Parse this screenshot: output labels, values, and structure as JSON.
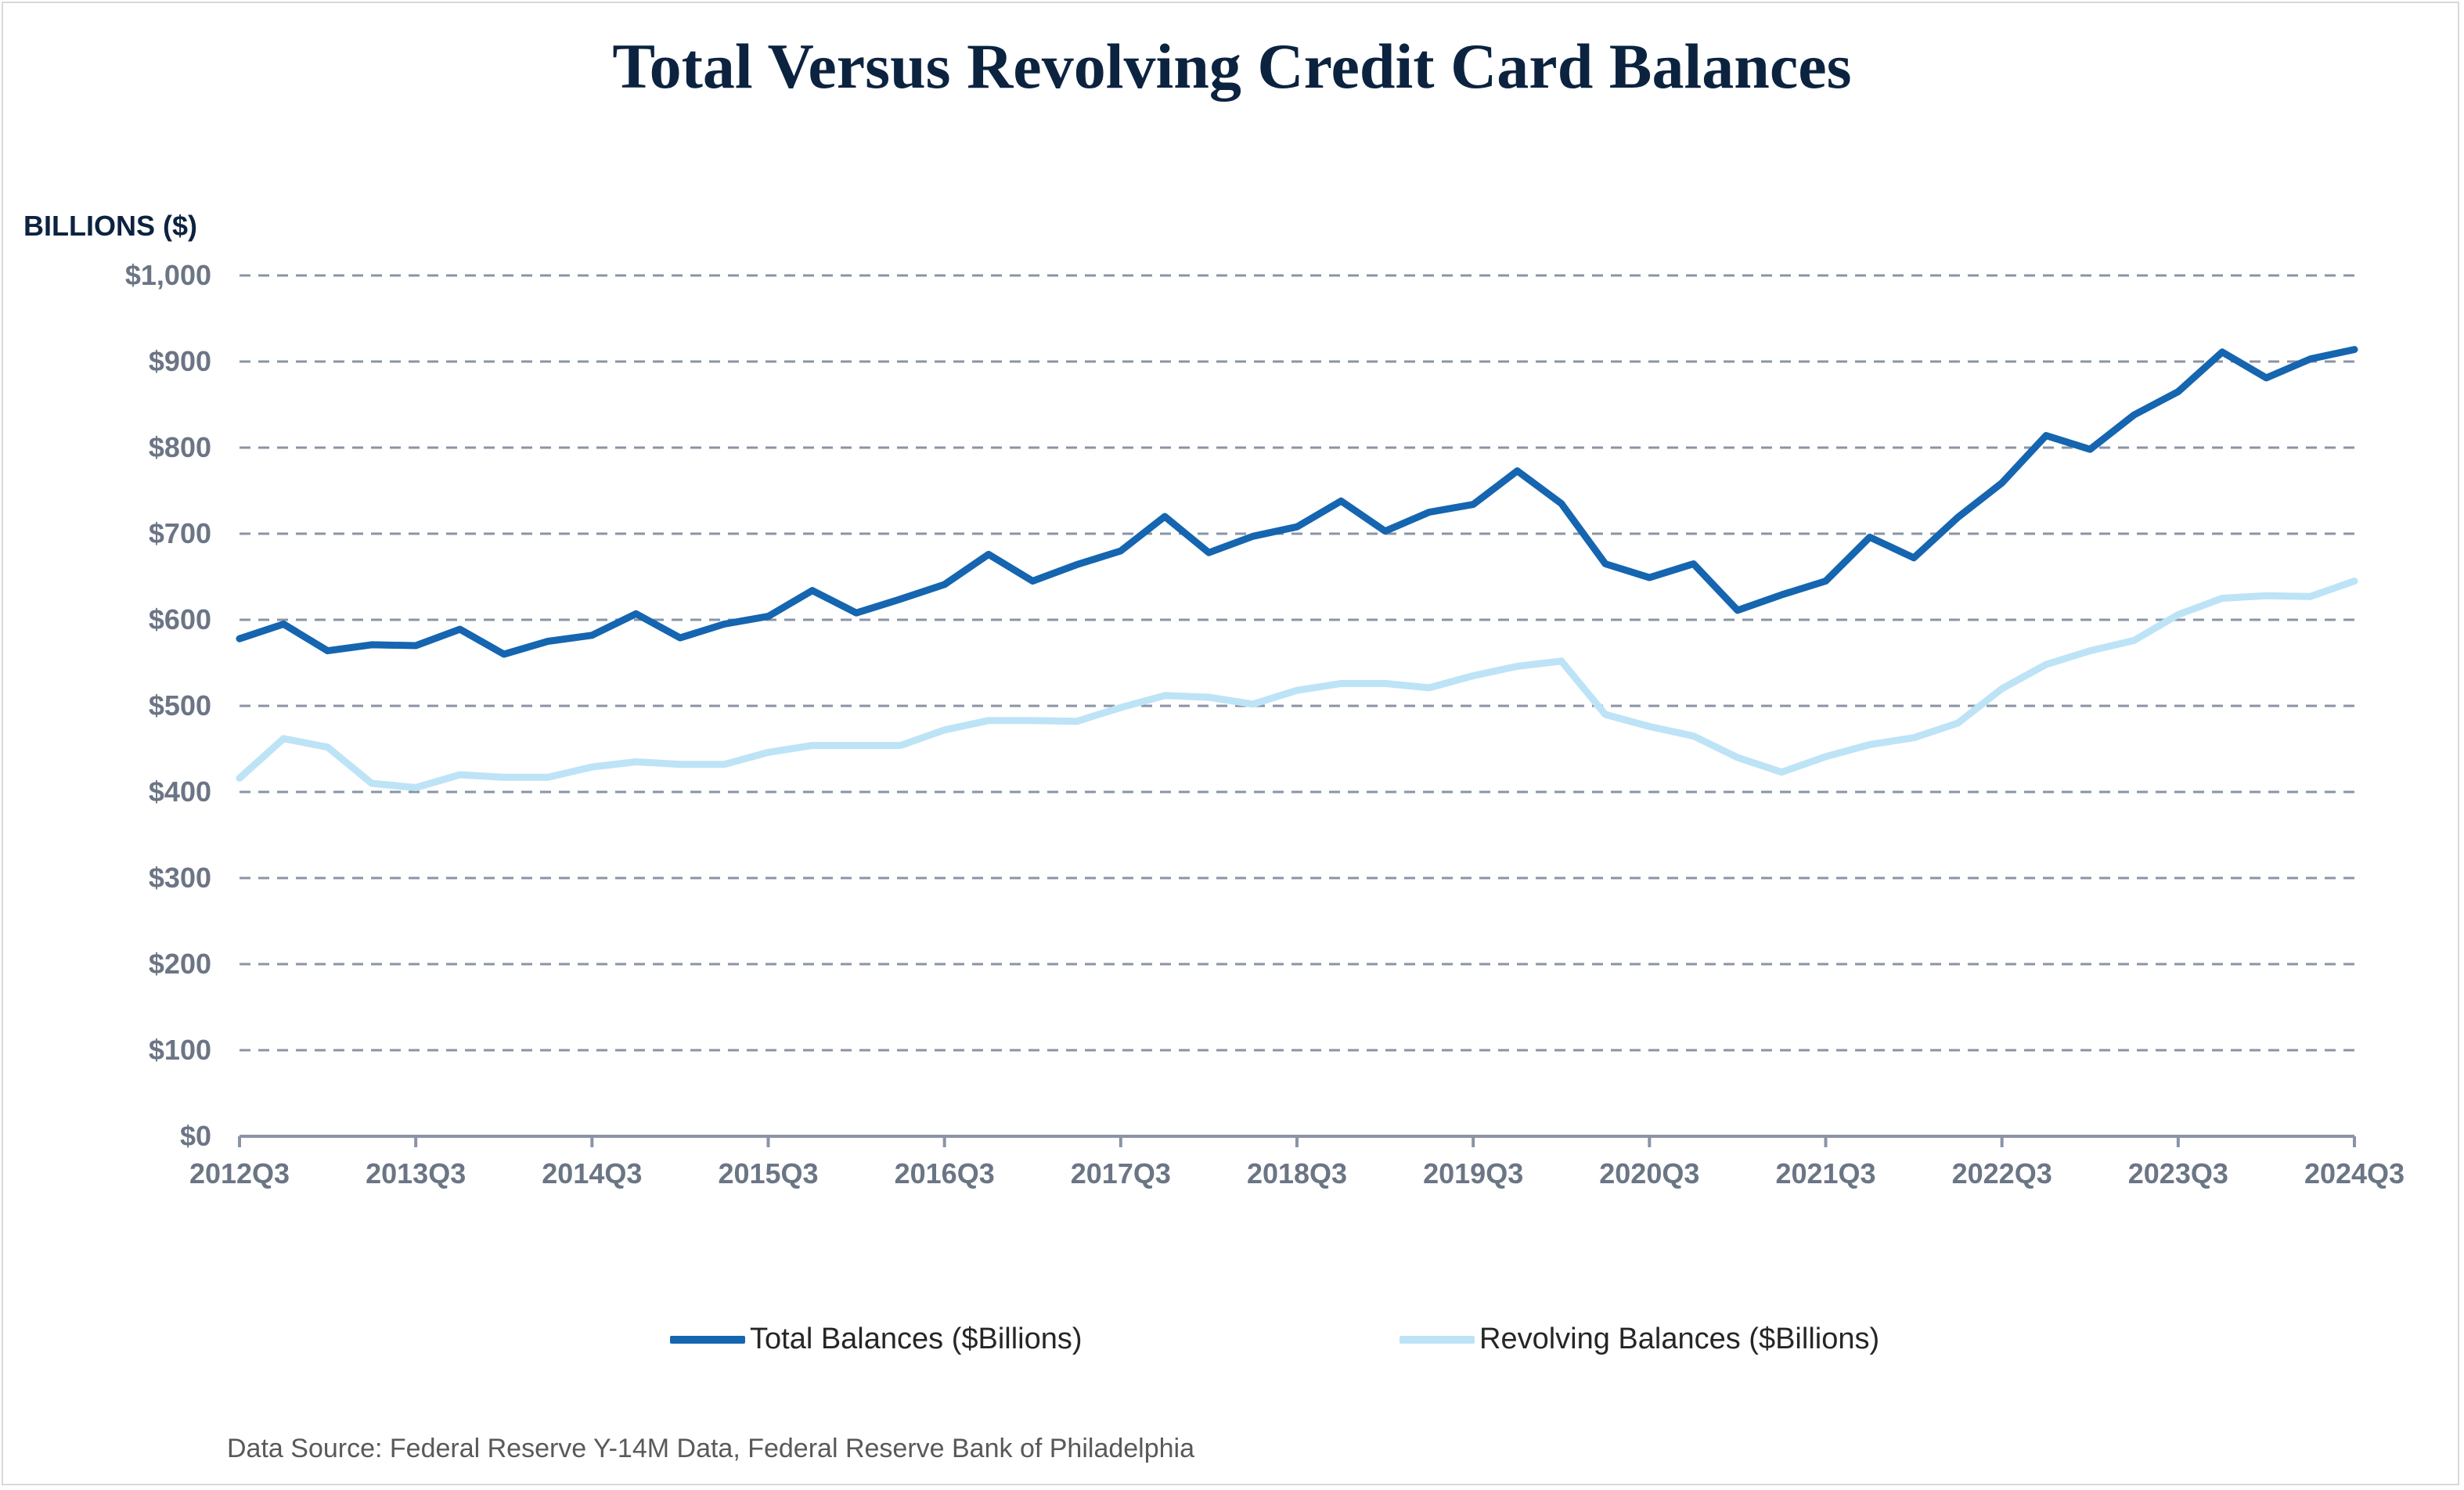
{
  "chart_data": {
    "type": "line",
    "title": "Total Versus Revolving Credit Card Balances",
    "ylabel": "BILLIONS ($)",
    "source": "Data Source: Federal Reserve Y-14M Data, Federal Reserve Bank of Philadelphia",
    "ylim": [
      0,
      1000
    ],
    "yticks": [
      "$0",
      "$100",
      "$200",
      "$300",
      "$400",
      "$500",
      "$600",
      "$700",
      "$800",
      "$900",
      "$1,000"
    ],
    "xtick_labels": [
      "2012Q3",
      "2013Q3",
      "2014Q3",
      "2015Q3",
      "2016Q3",
      "2017Q3",
      "2018Q3",
      "2019Q3",
      "2020Q3",
      "2021Q3",
      "2022Q3",
      "2023Q3",
      "2024Q3"
    ],
    "x": [
      "2012Q3",
      "2012Q4",
      "2013Q1",
      "2013Q2",
      "2013Q3",
      "2013Q4",
      "2014Q1",
      "2014Q2",
      "2014Q3",
      "2014Q4",
      "2015Q1",
      "2015Q2",
      "2015Q3",
      "2015Q4",
      "2016Q1",
      "2016Q2",
      "2016Q3",
      "2016Q4",
      "2017Q1",
      "2017Q2",
      "2017Q3",
      "2017Q4",
      "2018Q1",
      "2018Q2",
      "2018Q3",
      "2018Q4",
      "2019Q1",
      "2019Q2",
      "2019Q3",
      "2019Q4",
      "2020Q1",
      "2020Q2",
      "2020Q3",
      "2020Q4",
      "2021Q1",
      "2021Q2",
      "2021Q3",
      "2021Q4",
      "2022Q1",
      "2022Q2",
      "2022Q3",
      "2022Q4",
      "2023Q1",
      "2023Q2",
      "2023Q3",
      "2023Q4",
      "2024Q1",
      "2024Q2",
      "2024Q3"
    ],
    "grid": true,
    "legend_position": "bottom",
    "series": [
      {
        "name": "Total Balances ($Billions)",
        "color": "#1565b0",
        "values": [
          578,
          595,
          564,
          571,
          570,
          589,
          560,
          575,
          582,
          607,
          579,
          595,
          604,
          634,
          608,
          624,
          641,
          676,
          645,
          664,
          680,
          720,
          678,
          697,
          708,
          738,
          703,
          725,
          734,
          773,
          735,
          665,
          649,
          665,
          611,
          629,
          645,
          696,
          672,
          719,
          759,
          814,
          798,
          838,
          865,
          911,
          881,
          903,
          914
        ]
      },
      {
        "name": "Revolving Balances  ($Billions)",
        "color": "#bde3f7",
        "values": [
          416,
          462,
          452,
          410,
          405,
          420,
          417,
          417,
          429,
          435,
          432,
          432,
          446,
          454,
          454,
          454,
          472,
          483,
          483,
          482,
          498,
          512,
          510,
          502,
          518,
          526,
          526,
          521,
          535,
          546,
          552,
          490,
          476,
          465,
          440,
          423,
          441,
          455,
          463,
          480,
          520,
          548,
          564,
          576,
          606,
          625,
          628,
          627,
          645
        ]
      }
    ]
  }
}
